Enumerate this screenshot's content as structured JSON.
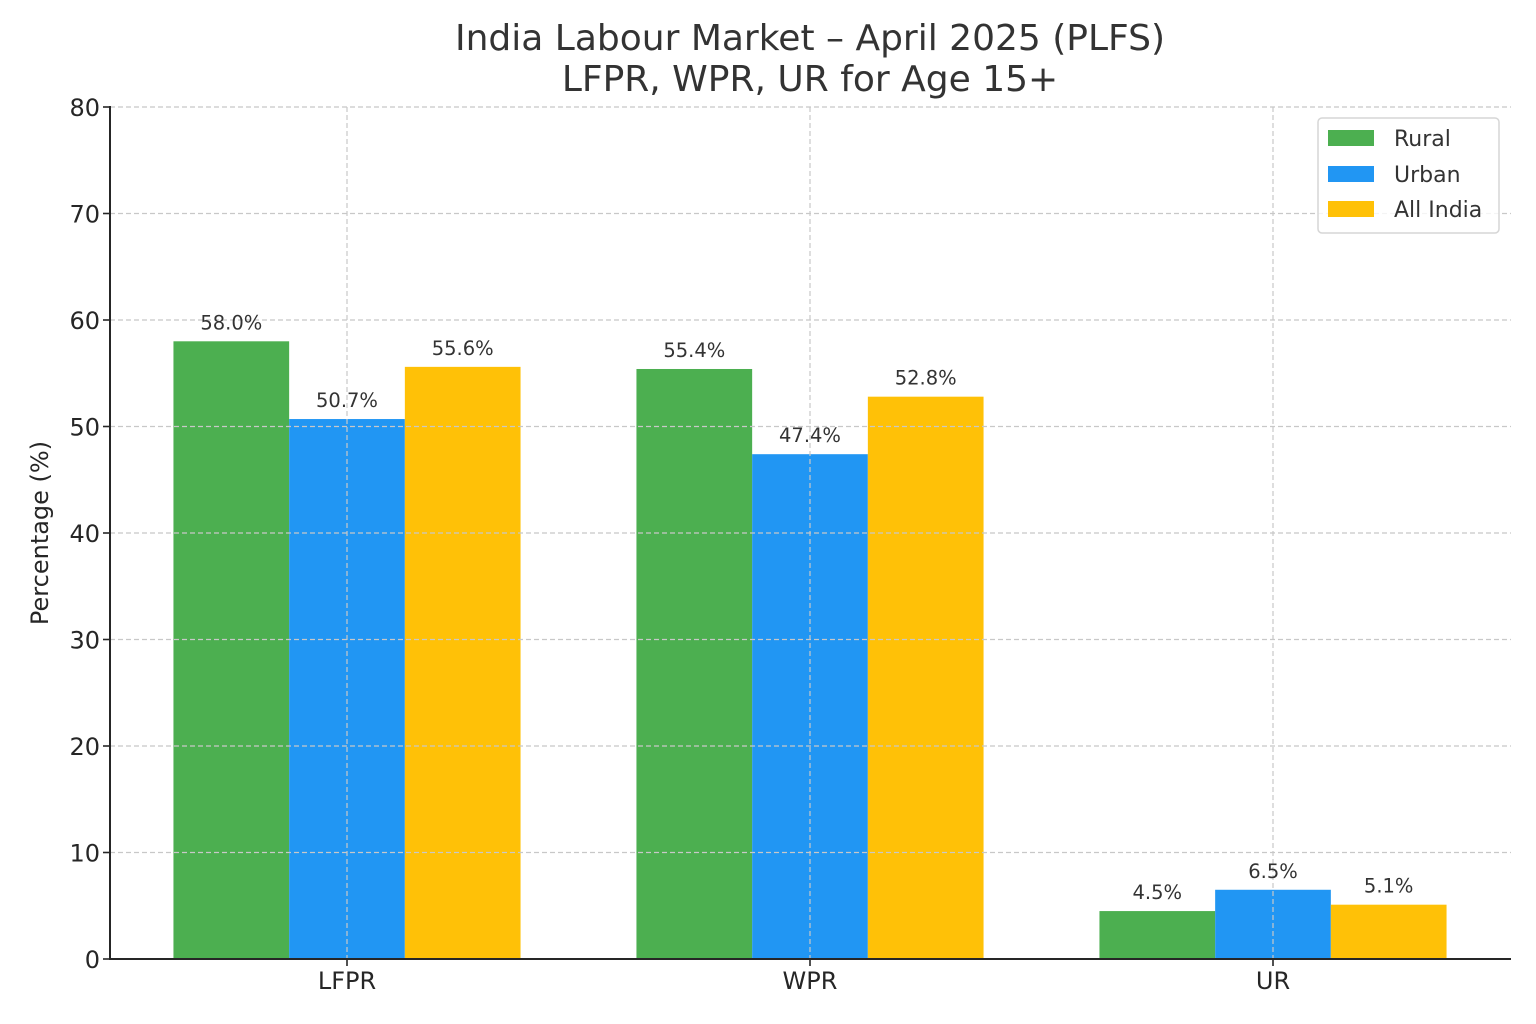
{
  "chart_data": {
    "type": "bar",
    "title": "India Labour Market – April 2025 (PLFS)",
    "subtitle": "LFPR, WPR, UR for Age 15+",
    "xlabel": "",
    "ylabel": "Percentage (%)",
    "ylim": [
      0,
      80
    ],
    "yticks": [
      0,
      10,
      20,
      30,
      40,
      50,
      60,
      70,
      80
    ],
    "categories": [
      "LFPR",
      "WPR",
      "UR"
    ],
    "series": [
      {
        "name": "Rural",
        "color": "#4CAF50",
        "values": [
          58.0,
          55.4,
          4.5
        ],
        "labels": [
          "58.0%",
          "55.4%",
          "4.5%"
        ]
      },
      {
        "name": "Urban",
        "color": "#2196F3",
        "values": [
          50.7,
          47.4,
          6.5
        ],
        "labels": [
          "50.7%",
          "47.4%",
          "6.5%"
        ]
      },
      {
        "name": "All India",
        "color": "#FFC107",
        "values": [
          55.6,
          52.8,
          5.1
        ],
        "labels": [
          "55.6%",
          "52.8%",
          "5.1%"
        ]
      }
    ],
    "grid": true,
    "legend_position": "upper right"
  },
  "title": {
    "line1": "India Labour Market – April 2025 (PLFS)",
    "line2": "LFPR, WPR, UR for Age 15+"
  },
  "axes": {
    "ylabel": "Percentage (%)",
    "yticks": [
      "0",
      "10",
      "20",
      "30",
      "40",
      "50",
      "60",
      "70",
      "80"
    ],
    "xticks": [
      "LFPR",
      "WPR",
      "UR"
    ]
  },
  "legend": {
    "items": [
      {
        "label": "Rural",
        "color": "#4CAF50"
      },
      {
        "label": "Urban",
        "color": "#2196F3"
      },
      {
        "label": "All India",
        "color": "#FFC107"
      }
    ]
  }
}
